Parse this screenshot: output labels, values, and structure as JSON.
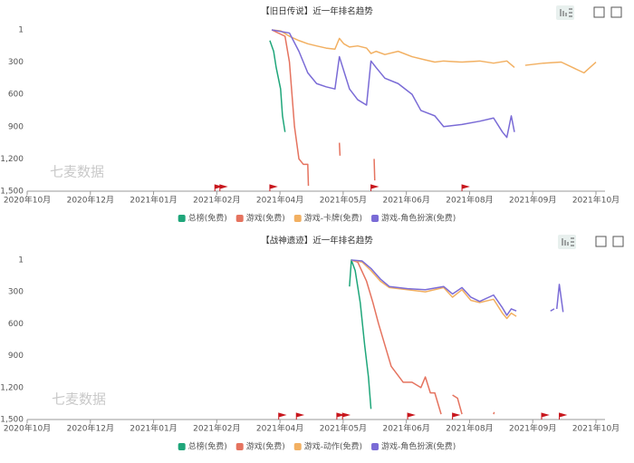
{
  "chart_data": [
    {
      "type": "line",
      "title": "【旧日传说】近一年排名趋势",
      "watermark": "七麦数据",
      "xlim": [
        0,
        9
      ],
      "xticks": [
        {
          "value": 0,
          "label": "2020年10月"
        },
        {
          "value": 1,
          "label": "2020年12月"
        },
        {
          "value": 2,
          "label": "2021年01月"
        },
        {
          "value": 3,
          "label": "2021年02月"
        },
        {
          "value": 4,
          "label": "2021年04月"
        },
        {
          "value": 5,
          "label": "2021年05月"
        },
        {
          "value": 6,
          "label": "2021年06月"
        },
        {
          "value": 7,
          "label": "2021年08月"
        },
        {
          "value": 8,
          "label": "2021年09月"
        },
        {
          "value": 9,
          "label": "2021年10月"
        }
      ],
      "ylim": [
        1500,
        1
      ],
      "yticks": [
        1,
        300,
        600,
        900,
        {
          "value": 1200,
          "label": "1,200"
        },
        {
          "value": 1500,
          "label": "1,500"
        }
      ],
      "grid": false,
      "event_flags": [
        2.97,
        3.05,
        3.84,
        5.44,
        6.88
      ],
      "flag_color": "#c8161d",
      "series": [
        {
          "name": "总榜(免费)",
          "color": "#1fa67a",
          "x": [
            3.84,
            3.9,
            3.94,
            4.01,
            4.04,
            4.08
          ],
          "values": [
            100,
            200,
            350,
            550,
            800,
            950
          ]
        },
        {
          "name": "游戏(免费)",
          "color": "#e5735f",
          "x": [
            3.87,
            4.08,
            4.15,
            4.23,
            4.3,
            4.37,
            4.44,
            4.45,
            4.9,
            4.94,
            4.95,
            5.2,
            5.49,
            5.5
          ],
          "values": [
            1,
            60,
            300,
            900,
            1200,
            1250,
            1250,
            1450,
            null,
            1050,
            1170,
            null,
            1200,
            1400
          ]
        },
        {
          "name": "游戏-卡牌(免费)",
          "color": "#f2b062",
          "x": [
            3.87,
            4.01,
            4.15,
            4.3,
            4.44,
            4.58,
            4.73,
            4.87,
            4.94,
            5.01,
            5.1,
            5.23,
            5.37,
            5.44,
            5.52,
            5.66,
            5.87,
            6.09,
            6.3,
            6.45,
            6.59,
            6.88,
            7.16,
            7.38,
            7.59,
            7.71,
            7.8,
            7.88,
            8.17,
            8.45,
            8.81,
            9.0
          ],
          "values": [
            1,
            10,
            60,
            100,
            130,
            150,
            170,
            180,
            80,
            130,
            160,
            150,
            170,
            220,
            200,
            230,
            200,
            250,
            280,
            300,
            290,
            300,
            290,
            310,
            290,
            350,
            null,
            330,
            310,
            300,
            400,
            300
          ]
        },
        {
          "name": "游戏-角色扮演(免费)",
          "color": "#7a6bd6",
          "x": [
            3.87,
            4.15,
            4.3,
            4.44,
            4.58,
            4.73,
            4.87,
            4.94,
            5.1,
            5.23,
            5.37,
            5.44,
            5.52,
            5.66,
            5.87,
            6.09,
            6.23,
            6.45,
            6.59,
            6.88,
            7.16,
            7.38,
            7.52,
            7.59,
            7.66,
            7.71
          ],
          "values": [
            1,
            30,
            200,
            400,
            500,
            530,
            550,
            250,
            550,
            650,
            700,
            290,
            350,
            450,
            500,
            600,
            750,
            800,
            900,
            880,
            850,
            820,
            950,
            1000,
            800,
            950
          ]
        }
      ]
    },
    {
      "type": "line",
      "title": "【战神遗迹】近一年排名趋势",
      "watermark": "七麦数据",
      "xlim": [
        0,
        9
      ],
      "xticks": [
        {
          "value": 0,
          "label": "2020年10月"
        },
        {
          "value": 1,
          "label": "2020年12月"
        },
        {
          "value": 2,
          "label": "2021年01月"
        },
        {
          "value": 3,
          "label": "2021年02月"
        },
        {
          "value": 4,
          "label": "2021年04月"
        },
        {
          "value": 5,
          "label": "2021年05月"
        },
        {
          "value": 6,
          "label": "2021年06月"
        },
        {
          "value": 7,
          "label": "2021年08月"
        },
        {
          "value": 8,
          "label": "2021年09月"
        },
        {
          "value": 9,
          "label": "2021年10月"
        }
      ],
      "ylim": [
        1500,
        1
      ],
      "yticks": [
        1,
        300,
        600,
        900,
        {
          "value": 1200,
          "label": "1,200"
        },
        {
          "value": 1500,
          "label": "1,500"
        }
      ],
      "grid": false,
      "event_flags": [
        3.98,
        4.26,
        4.9,
        4.99,
        6.02,
        6.73,
        8.14,
        8.42
      ],
      "flag_color": "#c8161d",
      "series": [
        {
          "name": "总榜(免费)",
          "color": "#1fa67a",
          "x": [
            5.1,
            5.13,
            5.19,
            5.27,
            5.34,
            5.4,
            5.44
          ],
          "values": [
            250,
            1,
            100,
            400,
            800,
            1100,
            1400
          ]
        },
        {
          "name": "游戏(免费)",
          "color": "#e5735f",
          "x": [
            5.13,
            5.23,
            5.37,
            5.47,
            5.56,
            5.66,
            5.76,
            5.95,
            6.09,
            6.23,
            6.3,
            6.38,
            6.45,
            6.55,
            6.6,
            6.73,
            6.81,
            6.88,
            7.1,
            7.38,
            7.39
          ],
          "values": [
            1,
            20,
            200,
            400,
            600,
            800,
            1000,
            1150,
            1150,
            1200,
            1100,
            1250,
            1250,
            1450,
            null,
            1270,
            1300,
            1450,
            null,
            1450,
            1430
          ]
        },
        {
          "name": "游戏-动作(免费)",
          "color": "#f2b062",
          "x": [
            5.13,
            5.3,
            5.44,
            5.59,
            5.73,
            6.02,
            6.3,
            6.59,
            6.73,
            6.88,
            7.02,
            7.16,
            7.38,
            7.52,
            7.59,
            7.66,
            7.74
          ],
          "values": [
            1,
            20,
            100,
            200,
            260,
            280,
            300,
            260,
            350,
            280,
            380,
            400,
            370,
            500,
            550,
            500,
            530
          ]
        },
        {
          "name": "游戏-角色扮演(免费)",
          "color": "#7a6bd6",
          "x": [
            5.13,
            5.3,
            5.44,
            5.59,
            5.73,
            6.02,
            6.3,
            6.59,
            6.73,
            6.88,
            7.02,
            7.16,
            7.38,
            7.52,
            7.59,
            7.66,
            7.74,
            8.0,
            8.28,
            8.34,
            8.36,
            8.38,
            8.42,
            8.48
          ],
          "values": [
            1,
            10,
            80,
            180,
            250,
            270,
            280,
            250,
            320,
            260,
            350,
            390,
            330,
            450,
            520,
            460,
            480,
            null,
            480,
            460,
            null,
            460,
            230,
            490
          ]
        }
      ]
    }
  ]
}
